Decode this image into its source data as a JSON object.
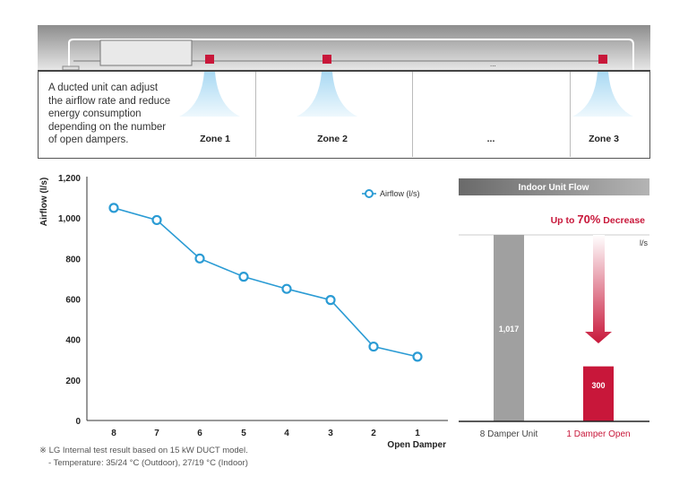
{
  "illustration": {
    "description": "A ducted unit can adjust the airflow rate and reduce energy consumption depending on the number of open dampers.",
    "zones": [
      "Zone 1",
      "Zone 2",
      "...",
      "Zone 3"
    ],
    "duct_ellipsis": "...",
    "damper_color": "#c8173a"
  },
  "chart_data": [
    {
      "type": "line",
      "ylabel": "Airflow (l/s)",
      "xlabel": "Open Damper",
      "categories": [
        "8",
        "7",
        "6",
        "5",
        "4",
        "3",
        "2",
        "1"
      ],
      "series": [
        {
          "name": "Airflow (l/s)",
          "values": [
            1050,
            990,
            800,
            710,
            650,
            595,
            365,
            315
          ],
          "color": "#2a9bd4"
        }
      ],
      "ylim": [
        0,
        1200
      ],
      "yticks": [
        "0",
        "200",
        "400",
        "600",
        "800",
        "1,000",
        "1,200"
      ],
      "grid": false,
      "legend": "top-right"
    },
    {
      "type": "bar",
      "title": "Indoor Unit Flow",
      "annotation": {
        "prefix": "Up to ",
        "value": "70%",
        "suffix": " Decrease"
      },
      "unit": "l/s",
      "categories": [
        "8 Damper Unit",
        "1 Damper Open"
      ],
      "values": [
        1017,
        300
      ],
      "data_labels": [
        "1,017",
        "300"
      ],
      "colors": [
        "#a0a0a0",
        "#c8173a"
      ]
    }
  ],
  "footnote": {
    "line1": "※ LG Internal test result based on 15 kW DUCT model.",
    "line2": "- Temperature: 35/24 °C (Outdoor), 27/19 °C (Indoor)"
  }
}
